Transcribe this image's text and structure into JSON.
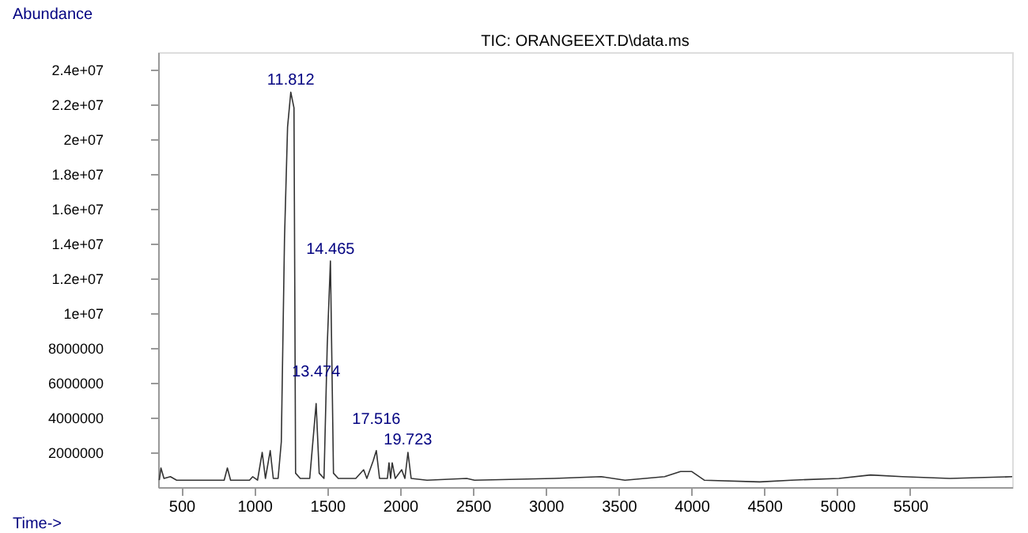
{
  "chart_data": {
    "type": "line",
    "title": "TIC: ORANGEEXT.D\\data.ms",
    "xlabel": "Time->",
    "ylabel": "Abundance",
    "x": [
      348,
      359,
      380,
      424,
      467,
      663,
      793,
      815,
      837,
      967,
      989,
      1022,
      1054,
      1076,
      1109,
      1130,
      1163,
      1185,
      1207,
      1228,
      1250,
      1272,
      1283,
      1315,
      1380,
      1424,
      1445,
      1478,
      1500,
      1522,
      1543,
      1576,
      1696,
      1750,
      1772,
      1815,
      1837,
      1859,
      1913,
      1924,
      1935,
      1946,
      1967,
      2011,
      2033,
      2054,
      2076,
      2185,
      2457,
      2511,
      3054,
      3380,
      3543,
      3815,
      3924,
      4000,
      4087,
      4467,
      4685,
      5011,
      5228,
      5446,
      5772,
      6200
    ],
    "series": [
      {
        "color": "#333333",
        "values": [
          400000,
          1100000,
          500000,
          600000,
          400000,
          400000,
          400000,
          1100000,
          400000,
          400000,
          600000,
          400000,
          2000000,
          500000,
          2100000,
          500000,
          500000,
          2600000,
          14300000,
          20700000,
          22700000,
          21800000,
          800000,
          500000,
          500000,
          4800000,
          800000,
          500000,
          8100000,
          13000000,
          800000,
          500000,
          500000,
          1000000,
          500000,
          1500000,
          2100000,
          500000,
          500000,
          1400000,
          500000,
          1400000,
          500000,
          1000000,
          500000,
          2000000,
          500000,
          400000,
          500000,
          400000,
          500000,
          600000,
          400000,
          600000,
          900000,
          900000,
          400000,
          300000,
          400000,
          500000,
          700000,
          600000,
          500000,
          600000
        ]
      }
    ],
    "xlim": [
      340,
      6200
    ],
    "xticks": [
      500,
      1000,
      1500,
      2000,
      2500,
      3000,
      3500,
      4000,
      4500,
      5000,
      5500
    ],
    "ylim": [
      0,
      25000000
    ],
    "yticks": [
      2000000,
      4000000,
      6000000,
      8000000,
      {
        "value": 10000000,
        "label": "1e+07"
      },
      {
        "value": 12000000,
        "label": "1.2e+07"
      },
      {
        "value": 14000000,
        "label": "1.4e+07"
      },
      {
        "value": 16000000,
        "label": "1.6e+07"
      },
      {
        "value": 18000000,
        "label": "1.8e+07"
      },
      {
        "value": 20000000,
        "label": "2e+07"
      },
      {
        "value": 22000000,
        "label": "2.2e+07"
      },
      {
        "value": 24000000,
        "label": "2.4e+07"
      }
    ],
    "annotations": [
      {
        "text": "11.812",
        "x": 1250,
        "y": 22700000
      },
      {
        "text": "13.474",
        "x": 1424,
        "y": 4840000
      },
      {
        "text": "14.465",
        "x": 1522,
        "y": 12970000
      },
      {
        "text": "17.516",
        "x": 1837,
        "y": 2100000
      },
      {
        "text": "19.723",
        "x": 2054,
        "y": 2000000
      }
    ],
    "grid": false,
    "marker": "none",
    "line_style": "solid"
  }
}
